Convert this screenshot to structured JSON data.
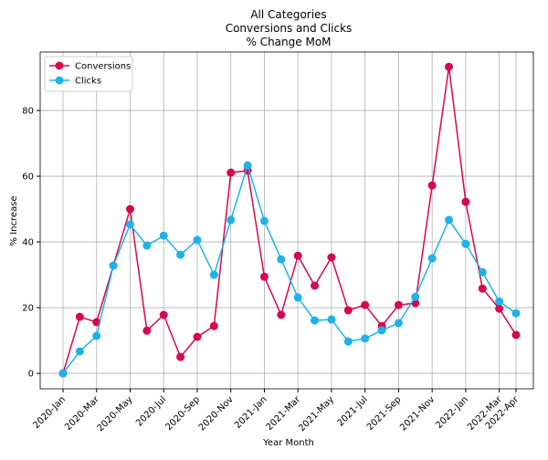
{
  "chart_data": {
    "type": "line",
    "title": [
      "All Categories",
      "Conversions and Clicks",
      "% Change MoM"
    ],
    "x_label": "Year Month",
    "y_label": "% Increase",
    "categories": [
      "2020-Jan",
      null,
      "2020-Mar",
      null,
      "2020-May",
      null,
      "2020-Jul",
      null,
      "2020-Sep",
      null,
      "2020-Nov",
      null,
      "2021-Jan",
      null,
      "2021-Mar",
      null,
      "2021-May",
      null,
      "2021-Jul",
      null,
      "2021-Sep",
      null,
      "2021-Nov",
      null,
      "2022-Jan",
      null,
      "2022-Mar",
      "2022-Apr"
    ],
    "series": [
      {
        "name": "Conversions",
        "color": "#d6084f",
        "values": [
          0,
          17.2,
          15.6,
          32.8,
          50,
          13,
          17.8,
          5,
          11.1,
          14.4,
          61.1,
          61.7,
          29.4,
          17.8,
          35.8,
          26.7,
          35.3,
          19.2,
          20.8,
          14.4,
          20.8,
          21.4,
          57.2,
          93.3,
          52.2,
          25.8,
          19.7,
          11.7
        ]
      },
      {
        "name": "Clicks",
        "color": "#1fb2e8",
        "values": [
          0,
          6.7,
          11.4,
          32.8,
          45.3,
          38.9,
          41.9,
          36.1,
          40.6,
          30,
          46.7,
          63.3,
          46.4,
          34.7,
          23.1,
          16.1,
          16.4,
          9.7,
          10.6,
          13.1,
          15.3,
          23.3,
          35,
          46.7,
          39.4,
          30.8,
          21.9,
          18.3
        ]
      }
    ],
    "ylim": [
      -4.7,
      97.8
    ],
    "yticks": [
      0,
      20,
      40,
      60,
      80
    ],
    "grid": true,
    "legend": "upper left"
  }
}
